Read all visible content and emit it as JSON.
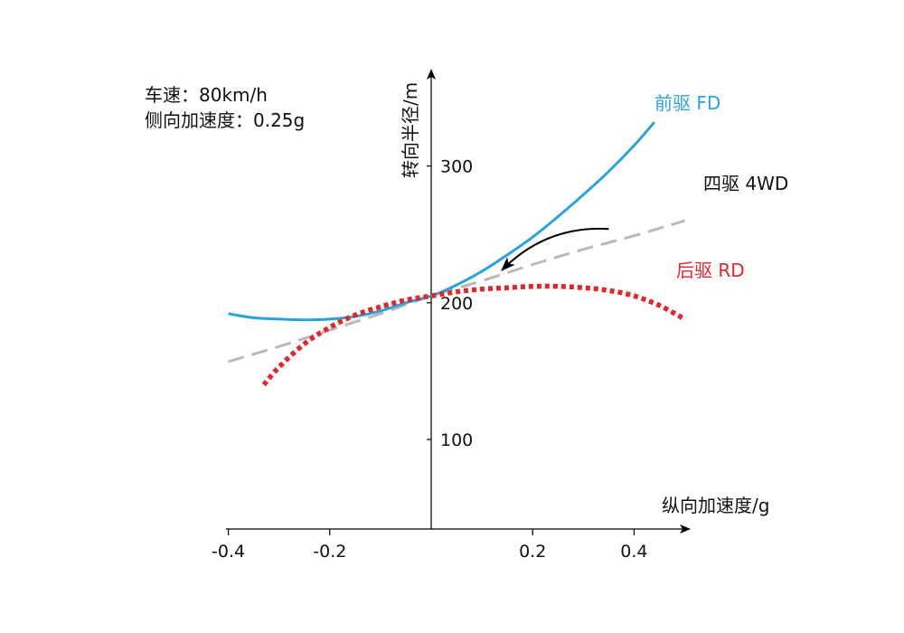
{
  "chart_data": {
    "type": "line",
    "info": [
      "车速：80km/h",
      "侧向加速度：0.25g"
    ],
    "xlabel": "纵向加速度/g",
    "ylabel": "转向半径/m",
    "xlim": [
      -0.42,
      0.5
    ],
    "ylim": [
      100,
      340
    ],
    "x_ticks": [
      -0.4,
      -0.2,
      0.2,
      0.4
    ],
    "x_tick_labels": [
      "-0.4",
      "-0.2",
      "0.2",
      "0.4"
    ],
    "y_ticks": [
      100,
      200,
      300
    ],
    "y_tick_labels": [
      "100",
      "200",
      "300"
    ],
    "grid": false,
    "series": [
      {
        "name": "前驱 FD",
        "color": "#2aa3dc",
        "style": "solid",
        "x": [
          -0.4,
          -0.35,
          -0.3,
          -0.25,
          -0.2,
          -0.15,
          -0.1,
          -0.05,
          0,
          0.05,
          0.1,
          0.15,
          0.2,
          0.25,
          0.3,
          0.35,
          0.4,
          0.44
        ],
        "y": [
          192,
          189,
          188,
          187.5,
          188,
          190,
          194,
          200,
          205,
          213,
          223,
          235,
          248,
          263,
          279,
          296,
          315,
          332
        ]
      },
      {
        "name": "四驱 4WD",
        "color": "#b9b9b9",
        "style": "dashed",
        "x": [
          -0.4,
          -0.3,
          -0.2,
          -0.1,
          0,
          0.1,
          0.2,
          0.3,
          0.4,
          0.5
        ],
        "y": [
          157,
          168,
          180,
          192,
          205,
          216,
          228,
          239,
          249,
          260
        ]
      },
      {
        "name": "后驱 RD",
        "color": "#e3262c",
        "style": "dotted",
        "x": [
          -0.33,
          -0.3,
          -0.25,
          -0.2,
          -0.15,
          -0.1,
          -0.05,
          0,
          0.05,
          0.1,
          0.15,
          0.2,
          0.25,
          0.3,
          0.35,
          0.4,
          0.45,
          0.5
        ],
        "y": [
          140,
          153,
          170,
          182,
          191,
          197,
          202,
          205,
          208,
          210,
          211,
          212,
          212,
          211,
          209,
          205,
          198,
          188
        ]
      }
    ],
    "annotations": [
      {
        "type": "arrow",
        "direction": "decreasing-x",
        "x_from": 0.35,
        "y_from": 254,
        "x_to": 0.14,
        "y_to": 224,
        "color": "#000000"
      }
    ]
  }
}
